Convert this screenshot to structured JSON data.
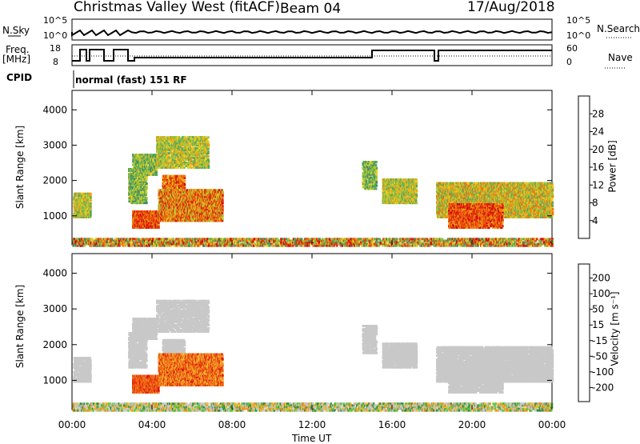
{
  "header": {
    "station": "Christmas Valley West (fitACF)",
    "beam": "Beam 04",
    "date": "17/Aug/2018"
  },
  "strip": {
    "nsky_label": "N.Sky",
    "nsky_ticks": [
      "10^5",
      "10^0"
    ],
    "nsearch_label": "N.Search",
    "nsearch_ticks": [
      "10^5",
      "10^0"
    ],
    "freq_label": "Freq.",
    "freq_unit": "[MHz]",
    "freq_ticks": [
      "18",
      "8"
    ],
    "nave_label": "Nave",
    "nave_ticks": [
      "60",
      "0"
    ],
    "cpid_label": "CPID",
    "cpid_text": "normal (fast) 151 RF"
  },
  "chart_data": [
    {
      "type": "heatmap",
      "name": "power",
      "ylabel": "Slant Range [km]",
      "yticks": [
        1000,
        2000,
        3000,
        4000
      ],
      "ylim": [
        180,
        4550
      ],
      "xlim": [
        0,
        24
      ],
      "colorbar_label": "Power [dB]",
      "colorbar_ticks": [
        4,
        8,
        12,
        16,
        20,
        24,
        28
      ],
      "colors": [
        "#1010e8",
        "#2a54c0",
        "#3f8a68",
        "#56a85a",
        "#9cc640",
        "#e8d020",
        "#f0a018",
        "#f07010",
        "#e03010",
        "#d40000"
      ]
    },
    {
      "type": "heatmap",
      "name": "velocity",
      "ylabel": "Slant Range [km]",
      "yticks": [
        1000,
        2000,
        3000,
        4000
      ],
      "ylim": [
        180,
        4550
      ],
      "xlim": [
        0,
        24
      ],
      "colorbar_label": "Velocity [m s⁻¹]",
      "colorbar_ticks": [
        200,
        100,
        50,
        15,
        -15,
        -50,
        -100,
        -200
      ],
      "colors": [
        "#1a2aa8",
        "#2a70c0",
        "#2e8a4a",
        "#5ac83a",
        "#c8c8c8",
        "#c8c8c8",
        "#f0c030",
        "#f09020",
        "#f06010",
        "#e01010"
      ],
      "xlabel": "Time UT",
      "xticks": [
        "00:00",
        "04:00",
        "08:00",
        "12:00",
        "16:00",
        "20:00",
        "00:00"
      ]
    }
  ]
}
